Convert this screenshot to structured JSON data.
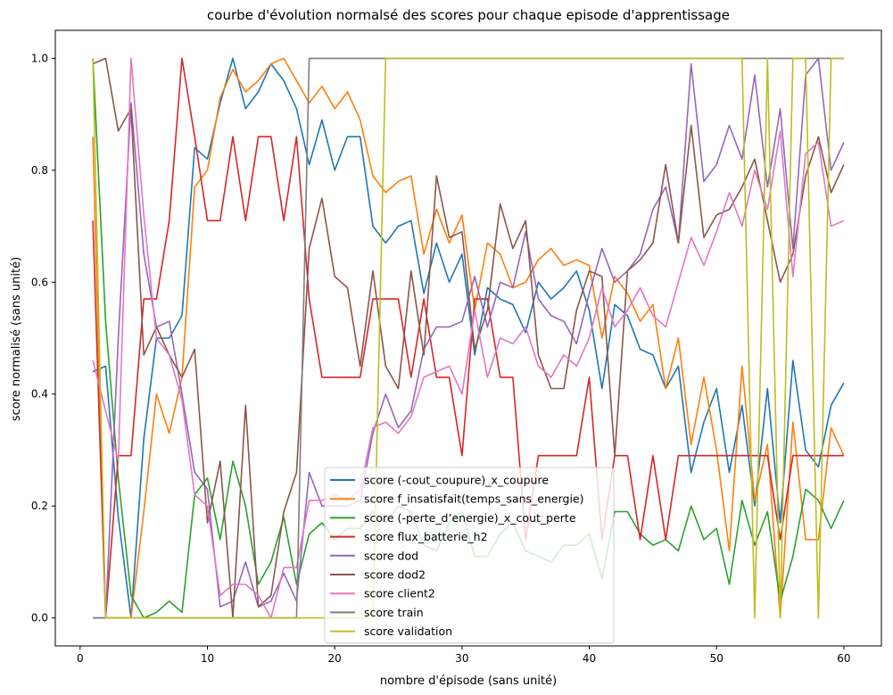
{
  "chart_data": {
    "type": "line",
    "title": "courbe d'évolution normalsé des scores pour chaque episode d'apprentissage",
    "xlabel": "nombre d'épisode (sans unité)",
    "ylabel": "score normalisé (sans unité)",
    "xlim": [
      -1.95,
      62.95
    ],
    "ylim": [
      -0.05,
      1.05
    ],
    "xticks": [
      0,
      10,
      20,
      30,
      40,
      50,
      60
    ],
    "yticks": [
      0.0,
      0.2,
      0.4,
      0.6,
      0.8,
      1.0
    ],
    "grid": false,
    "legend_position": "lower-center",
    "x": [
      1,
      2,
      3,
      4,
      5,
      6,
      7,
      8,
      9,
      10,
      11,
      12,
      13,
      14,
      15,
      16,
      17,
      18,
      19,
      20,
      21,
      22,
      23,
      24,
      25,
      26,
      27,
      28,
      29,
      30,
      31,
      32,
      33,
      34,
      35,
      36,
      37,
      38,
      39,
      40,
      41,
      42,
      43,
      44,
      45,
      46,
      47,
      48,
      49,
      50,
      51,
      52,
      53,
      54,
      55,
      56,
      57,
      58,
      59,
      60
    ],
    "series": [
      {
        "name": "score (-cout_coupure)_x_coupure",
        "color": "#1f77b4",
        "values": [
          0.44,
          0.45,
          0.18,
          0.0,
          0.32,
          0.5,
          0.5,
          0.54,
          0.84,
          0.82,
          0.92,
          1.0,
          0.91,
          0.94,
          0.99,
          0.96,
          0.91,
          0.81,
          0.89,
          0.8,
          0.86,
          0.86,
          0.7,
          0.67,
          0.7,
          0.71,
          0.58,
          0.67,
          0.6,
          0.65,
          0.47,
          0.59,
          0.57,
          0.56,
          0.51,
          0.6,
          0.57,
          0.59,
          0.62,
          0.55,
          0.41,
          0.56,
          0.54,
          0.48,
          0.47,
          0.41,
          0.45,
          0.26,
          0.35,
          0.41,
          0.26,
          0.38,
          0.2,
          0.41,
          0.17,
          0.46,
          0.3,
          0.27,
          0.38,
          0.42
        ]
      },
      {
        "name": "score f_insatisfait(temps_sans_energie)",
        "color": "#ff7f0e",
        "values": [
          0.86,
          0.0,
          0.0,
          0.0,
          0.19,
          0.4,
          0.33,
          0.43,
          0.77,
          0.8,
          0.93,
          0.98,
          0.94,
          0.96,
          0.99,
          1.0,
          0.96,
          0.92,
          0.95,
          0.91,
          0.94,
          0.89,
          0.79,
          0.76,
          0.78,
          0.79,
          0.65,
          0.73,
          0.67,
          0.72,
          0.55,
          0.67,
          0.65,
          0.59,
          0.6,
          0.64,
          0.66,
          0.63,
          0.64,
          0.63,
          0.5,
          0.61,
          0.58,
          0.53,
          0.56,
          0.41,
          0.5,
          0.31,
          0.43,
          0.3,
          0.12,
          0.45,
          0.21,
          0.31,
          0.0,
          0.35,
          0.14,
          0.14,
          0.34,
          0.29
        ]
      },
      {
        "name": "score (-perte_d’energie)_x_cout_perte",
        "color": "#2ca02c",
        "values": [
          1.0,
          0.53,
          0.25,
          0.04,
          0.0,
          0.01,
          0.03,
          0.01,
          0.22,
          0.25,
          0.14,
          0.28,
          0.2,
          0.06,
          0.1,
          0.18,
          0.06,
          0.15,
          0.17,
          0.14,
          0.16,
          0.16,
          0.19,
          0.17,
          0.2,
          0.19,
          0.13,
          0.12,
          0.17,
          0.19,
          0.11,
          0.11,
          0.15,
          0.17,
          0.12,
          0.11,
          0.1,
          0.13,
          0.13,
          0.15,
          0.07,
          0.19,
          0.19,
          0.15,
          0.13,
          0.14,
          0.12,
          0.2,
          0.14,
          0.16,
          0.06,
          0.21,
          0.13,
          0.19,
          0.03,
          0.11,
          0.23,
          0.21,
          0.16,
          0.21
        ]
      },
      {
        "name": "score flux_batterie_h2",
        "color": "#d62728",
        "values": [
          0.71,
          0.0,
          0.29,
          0.29,
          0.57,
          0.57,
          0.71,
          1.0,
          0.86,
          0.71,
          0.71,
          0.86,
          0.71,
          0.86,
          0.86,
          0.71,
          0.86,
          0.57,
          0.43,
          0.43,
          0.43,
          0.43,
          0.57,
          0.57,
          0.57,
          0.43,
          0.57,
          0.43,
          0.43,
          0.29,
          0.57,
          0.57,
          0.43,
          0.43,
          0.14,
          0.29,
          0.29,
          0.29,
          0.29,
          0.43,
          0.14,
          0.29,
          0.29,
          0.14,
          0.29,
          0.14,
          0.29,
          0.29,
          0.29,
          0.29,
          0.29,
          0.29,
          0.29,
          0.29,
          0.14,
          0.29,
          0.29,
          0.29,
          0.29,
          0.29
        ]
      },
      {
        "name": "score dod",
        "color": "#9467bd",
        "values": [
          0.0,
          0.0,
          0.5,
          0.92,
          0.65,
          0.52,
          0.53,
          0.4,
          0.26,
          0.23,
          0.02,
          0.03,
          0.1,
          0.02,
          0.03,
          0.08,
          0.03,
          0.26,
          0.2,
          0.2,
          0.2,
          0.21,
          0.33,
          0.4,
          0.34,
          0.37,
          0.48,
          0.52,
          0.52,
          0.53,
          0.61,
          0.52,
          0.6,
          0.59,
          0.69,
          0.57,
          0.54,
          0.53,
          0.49,
          0.58,
          0.66,
          0.6,
          0.62,
          0.65,
          0.73,
          0.77,
          0.67,
          0.99,
          0.78,
          0.81,
          0.88,
          0.82,
          0.97,
          0.77,
          0.91,
          0.66,
          0.97,
          1.0,
          0.8,
          0.85
        ]
      },
      {
        "name": "score dod2",
        "color": "#8c564b",
        "values": [
          0.99,
          1.0,
          0.87,
          0.91,
          0.47,
          0.52,
          0.47,
          0.43,
          0.48,
          0.17,
          0.28,
          0.0,
          0.38,
          0.02,
          0.04,
          0.19,
          0.26,
          0.66,
          0.75,
          0.61,
          0.59,
          0.45,
          0.62,
          0.45,
          0.41,
          0.62,
          0.47,
          0.79,
          0.68,
          0.69,
          0.48,
          0.55,
          0.74,
          0.66,
          0.71,
          0.47,
          0.41,
          0.41,
          0.55,
          0.62,
          0.61,
          0.29,
          0.62,
          0.64,
          0.67,
          0.81,
          0.67,
          0.88,
          0.68,
          0.72,
          0.73,
          0.77,
          0.82,
          0.71,
          0.6,
          0.65,
          0.79,
          0.86,
          0.76,
          0.81
        ]
      },
      {
        "name": "score client2",
        "color": "#e377c2",
        "values": [
          0.46,
          0.37,
          0.28,
          1.0,
          0.72,
          0.5,
          0.47,
          0.39,
          0.22,
          0.2,
          0.04,
          0.06,
          0.06,
          0.04,
          0.0,
          0.09,
          0.09,
          0.21,
          0.21,
          0.22,
          0.21,
          0.23,
          0.34,
          0.35,
          0.33,
          0.36,
          0.43,
          0.44,
          0.45,
          0.4,
          0.55,
          0.43,
          0.5,
          0.49,
          0.52,
          0.45,
          0.43,
          0.47,
          0.45,
          0.5,
          0.59,
          0.52,
          0.55,
          0.59,
          0.54,
          0.52,
          0.6,
          0.68,
          0.63,
          0.69,
          0.76,
          0.7,
          0.8,
          0.73,
          0.87,
          0.61,
          0.83,
          0.85,
          0.7,
          0.71
        ]
      },
      {
        "name": "score train",
        "color": "#7f7f7f",
        "values": [
          0.0,
          0.0,
          0.0,
          0.0,
          0.0,
          0.0,
          0.0,
          0.0,
          0.0,
          0.0,
          0.0,
          0.0,
          0.0,
          0.0,
          0.0,
          0.0,
          0.0,
          1.0,
          1.0,
          1.0,
          1.0,
          1.0,
          1.0,
          1.0,
          1.0,
          1.0,
          1.0,
          1.0,
          1.0,
          1.0,
          1.0,
          1.0,
          1.0,
          1.0,
          1.0,
          1.0,
          1.0,
          1.0,
          1.0,
          1.0,
          1.0,
          1.0,
          1.0,
          1.0,
          1.0,
          1.0,
          1.0,
          1.0,
          1.0,
          1.0,
          1.0,
          1.0,
          1.0,
          1.0,
          1.0,
          1.0,
          1.0,
          1.0,
          1.0,
          1.0
        ]
      },
      {
        "name": "score validation",
        "color": "#bcbd22",
        "values": [
          1.0,
          0.0,
          0.0,
          0.0,
          0.0,
          0.0,
          0.0,
          0.0,
          0.0,
          0.0,
          0.0,
          0.0,
          0.0,
          0.0,
          0.0,
          0.0,
          0.0,
          0.0,
          0.0,
          0.0,
          0.0,
          0.0,
          0.0,
          1.0,
          1.0,
          1.0,
          1.0,
          1.0,
          1.0,
          1.0,
          1.0,
          1.0,
          1.0,
          1.0,
          1.0,
          1.0,
          1.0,
          1.0,
          1.0,
          1.0,
          1.0,
          1.0,
          1.0,
          1.0,
          1.0,
          1.0,
          1.0,
          1.0,
          1.0,
          1.0,
          1.0,
          1.0,
          0.0,
          1.0,
          0.0,
          1.0,
          1.0,
          0.0,
          1.0,
          1.0
        ]
      }
    ]
  }
}
